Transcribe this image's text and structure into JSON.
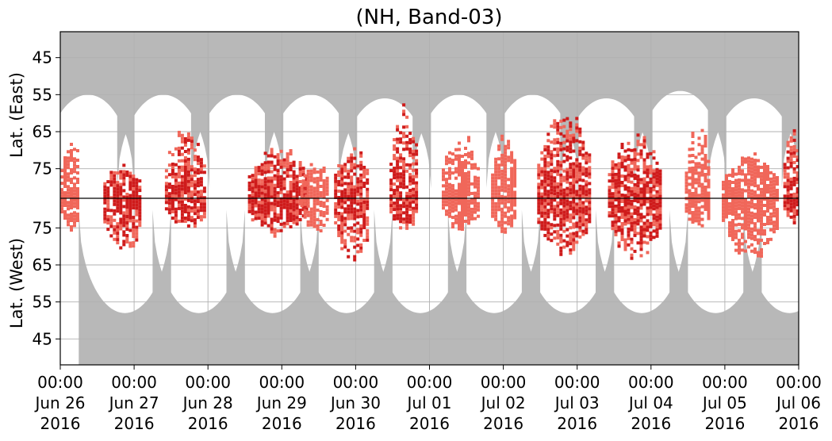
{
  "chart_data": {
    "type": "heatmap",
    "title": "(NH, Band-03)",
    "ylabel_east": "Lat. (East)",
    "ylabel_west": "Lat. (West)",
    "y_ticks_east": [
      "45",
      "55",
      "65",
      "75"
    ],
    "y_ticks_west": [
      "75",
      "65",
      "55",
      "45"
    ],
    "x_ticks": [
      {
        "time": "00:00",
        "date": "Jun 26",
        "year": "2016"
      },
      {
        "time": "00:00",
        "date": "Jun 27",
        "year": "2016"
      },
      {
        "time": "00:00",
        "date": "Jun 28",
        "year": "2016"
      },
      {
        "time": "00:00",
        "date": "Jun 29",
        "year": "2016"
      },
      {
        "time": "00:00",
        "date": "Jun 30",
        "year": "2016"
      },
      {
        "time": "00:00",
        "date": "Jul 01",
        "year": "2016"
      },
      {
        "time": "00:00",
        "date": "Jul 02",
        "year": "2016"
      },
      {
        "time": "00:00",
        "date": "Jul 03",
        "year": "2016"
      },
      {
        "time": "00:00",
        "date": "Jul 04",
        "year": "2016"
      },
      {
        "time": "00:00",
        "date": "Jul 05",
        "year": "2016"
      },
      {
        "time": "00:00",
        "date": "Jul 06",
        "year": "2016"
      }
    ],
    "x_range": [
      "2016-06-26 00:00",
      "2016-07-06 00:00"
    ],
    "lat_range": [
      38,
      83
    ],
    "grid": true,
    "colors": {
      "no_data": "#b8b8b8",
      "low": "#f0675a",
      "high": "#cf1b1b",
      "grid": "#b0b0b0",
      "axis": "#000000"
    },
    "no_data_regions": {
      "east": [
        {
          "center": "2016-06-26 09:00",
          "min_lat": 55
        },
        {
          "center": "2016-06-27 09:30",
          "min_lat": 55
        },
        {
          "center": "2016-06-28 09:30",
          "min_lat": 55
        },
        {
          "center": "2016-06-29 09:30",
          "min_lat": 55
        },
        {
          "center": "2016-06-30 09:30",
          "min_lat": 56
        },
        {
          "center": "2016-07-01 09:30",
          "min_lat": 55
        },
        {
          "center": "2016-07-02 09:30",
          "min_lat": 55
        },
        {
          "center": "2016-07-03 09:30",
          "min_lat": 56
        },
        {
          "center": "2016-07-04 09:30",
          "min_lat": 54
        },
        {
          "center": "2016-07-05 09:30",
          "min_lat": 56
        },
        {
          "center": "2016-07-06 09:30",
          "min_lat": 55
        }
      ],
      "west": [
        {
          "center": "2016-06-26 21:00",
          "min_lat": 52
        },
        {
          "center": "2016-06-27 21:00",
          "min_lat": 52
        },
        {
          "center": "2016-06-28 21:00",
          "min_lat": 52
        },
        {
          "center": "2016-06-29 21:00",
          "min_lat": 52
        },
        {
          "center": "2016-06-30 21:00",
          "min_lat": 52
        },
        {
          "center": "2016-07-01 21:00",
          "min_lat": 52
        },
        {
          "center": "2016-07-02 21:00",
          "min_lat": 52
        },
        {
          "center": "2016-07-03 21:00",
          "min_lat": 52
        },
        {
          "center": "2016-07-04 21:00",
          "min_lat": 52
        },
        {
          "center": "2016-07-05 21:00",
          "min_lat": 52
        }
      ]
    },
    "activity_clusters": [
      {
        "start": "2016-06-26 00:00",
        "end": "2016-06-26 06:00",
        "east_lat": [
          64,
          83
        ],
        "west_lat": [
          73,
          83
        ],
        "intensity": "low"
      },
      {
        "start": "2016-06-26 14:00",
        "end": "2016-06-27 02:00",
        "east_lat": [
          73,
          83
        ],
        "west_lat": [
          67,
          83
        ],
        "intensity": "high"
      },
      {
        "start": "2016-06-27 10:00",
        "end": "2016-06-27 23:00",
        "east_lat": [
          62,
          83
        ],
        "west_lat": [
          74,
          83
        ],
        "intensity": "high"
      },
      {
        "start": "2016-06-28 13:00",
        "end": "2016-06-29 08:00",
        "east_lat": [
          68,
          83
        ],
        "west_lat": [
          73,
          83
        ],
        "intensity": "high"
      },
      {
        "start": "2016-06-29 06:00",
        "end": "2016-06-29 15:00",
        "east_lat": [
          72,
          83
        ],
        "west_lat": [
          73,
          83
        ],
        "intensity": "low"
      },
      {
        "start": "2016-06-29 17:00",
        "end": "2016-06-30 04:00",
        "east_lat": [
          68,
          83
        ],
        "west_lat": [
          64,
          83
        ],
        "intensity": "high"
      },
      {
        "start": "2016-06-30 11:00",
        "end": "2016-06-30 20:00",
        "east_lat": [
          55,
          83
        ],
        "west_lat": [
          74,
          83
        ],
        "intensity": "high"
      },
      {
        "start": "2016-07-01 04:00",
        "end": "2016-07-01 16:00",
        "east_lat": [
          64,
          83
        ],
        "west_lat": [
          74,
          83
        ],
        "intensity": "low"
      },
      {
        "start": "2016-07-01 20:00",
        "end": "2016-07-02 04:00",
        "east_lat": [
          64,
          83
        ],
        "west_lat": [
          72,
          83
        ],
        "intensity": "low"
      },
      {
        "start": "2016-07-02 11:00",
        "end": "2016-07-03 04:00",
        "east_lat": [
          58,
          83
        ],
        "west_lat": [
          67,
          83
        ],
        "intensity": "high"
      },
      {
        "start": "2016-07-03 10:00",
        "end": "2016-07-04 03:00",
        "east_lat": [
          65,
          83
        ],
        "west_lat": [
          66,
          83
        ],
        "intensity": "high"
      },
      {
        "start": "2016-07-04 11:00",
        "end": "2016-07-04 19:00",
        "east_lat": [
          62,
          83
        ],
        "west_lat": [
          74,
          83
        ],
        "intensity": "low"
      },
      {
        "start": "2016-07-04 23:00",
        "end": "2016-07-05 17:00",
        "east_lat": [
          70,
          83
        ],
        "west_lat": [
          66,
          83
        ],
        "intensity": "low"
      },
      {
        "start": "2016-07-05 19:00",
        "end": "2016-07-06 00:00",
        "east_lat": [
          60,
          83
        ],
        "west_lat": [
          76,
          83
        ],
        "intensity": "high"
      }
    ]
  }
}
